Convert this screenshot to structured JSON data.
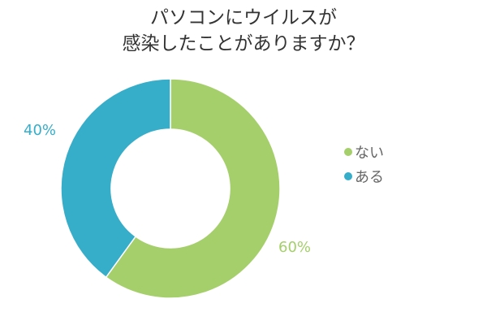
{
  "chart_data": {
    "type": "pie",
    "title_line1": "パソコンにウイルスが",
    "title_line2": "感染したことがありますか？",
    "categories": [
      "ない",
      "ある"
    ],
    "values": [
      60,
      40
    ],
    "value_labels": [
      "60%",
      "40%"
    ],
    "colors": [
      "#a5cf6b",
      "#36adc9"
    ],
    "legend_position": "right",
    "donut": true
  }
}
